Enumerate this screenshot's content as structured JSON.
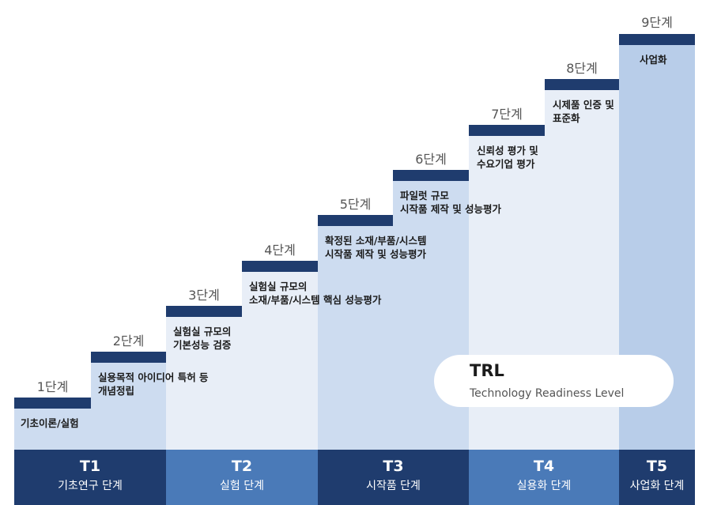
{
  "steps": [
    {
      "label": "1단계",
      "desc": [
        "기초이론/실험"
      ]
    },
    {
      "label": "2단계",
      "desc": [
        "실용목적 아이디어 특허 등",
        "개념정립"
      ]
    },
    {
      "label": "3단계",
      "desc": [
        "실험실 규모의",
        "기본성능 검증"
      ]
    },
    {
      "label": "4단계",
      "desc": [
        "실험실 규모의",
        "소재/부품/시스템 핵심 성능평가"
      ]
    },
    {
      "label": "5단계",
      "desc": [
        "확정된 소재/부품/시스템",
        "시작품 제작 및 성능평가"
      ]
    },
    {
      "label": "6단계",
      "desc": [
        "파일럿 규모",
        "시작품 제작 및 성능평가"
      ]
    },
    {
      "label": "7단계",
      "desc": [
        "신뢰성 평가 및",
        "수요기업 평가"
      ]
    },
    {
      "label": "8단계",
      "desc": [
        "시제품 인증 및",
        "표준화"
      ]
    },
    {
      "label": "9단계",
      "desc": [
        "사업화"
      ]
    }
  ],
  "phases": [
    {
      "code": "T1",
      "name": "기초연구 단계"
    },
    {
      "code": "T2",
      "name": "실험 단계"
    },
    {
      "code": "T3",
      "name": "시작품 단계"
    },
    {
      "code": "T4",
      "name": "실용화 단계"
    },
    {
      "code": "T5",
      "name": "사업화 단계"
    }
  ],
  "trl": {
    "title": "TRL",
    "subtitle": "Technology Readiness Level"
  },
  "colors": {
    "bar": "#1f3c6e",
    "phase_dark": "#1f3c6e",
    "phase_mid": "#4a7ab8",
    "step_light": "#e8eef7",
    "step_mid": "#cddcf0",
    "step_blue": "#b8cde9"
  }
}
